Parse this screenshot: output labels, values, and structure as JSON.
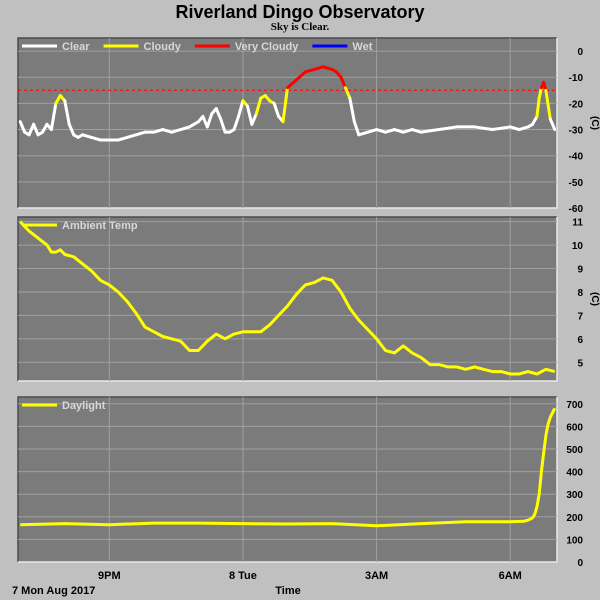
{
  "title": "Riverland Dingo Observatory",
  "subtitle": "Sky is Clear.",
  "colors": {
    "background": "#c0c0c0",
    "plot": "#7b7b7b",
    "grid": "#a0a0a0",
    "clear": "#ffffff",
    "cloudy": "#ffff00",
    "very_cloudy": "#ff0000",
    "wet": "#0000ff",
    "legend_text": "#d8d8d8"
  },
  "x_axis": {
    "label": "Time",
    "start_label": "7 Mon Aug 2017",
    "ticks": [
      {
        "t": 21,
        "label": "9PM"
      },
      {
        "t": 24,
        "label": "8 Tue"
      },
      {
        "t": 27,
        "label": "3AM"
      },
      {
        "t": 30,
        "label": "6AM"
      }
    ],
    "range": [
      18.95,
      31.05
    ]
  },
  "chart_data": [
    {
      "type": "line",
      "name": "sky",
      "ylabel": "(C)",
      "ylim": [
        -60,
        5
      ],
      "yticks": [
        0,
        -10,
        -20,
        -30,
        -40,
        -50,
        -60
      ],
      "grid": true,
      "legend": [
        {
          "label": "Clear",
          "color": "#ffffff"
        },
        {
          "label": "Cloudy",
          "color": "#ffff00"
        },
        {
          "label": "Very Cloudy",
          "color": "#ff0000"
        },
        {
          "label": "Wet",
          "color": "#0000ff"
        }
      ],
      "threshold": {
        "value": -15,
        "color": "#ff0000",
        "style": "dashed"
      },
      "x": [
        19.0,
        19.1,
        19.2,
        19.3,
        19.4,
        19.5,
        19.6,
        19.7,
        19.8,
        19.9,
        20.0,
        20.1,
        20.2,
        20.3,
        20.4,
        20.6,
        20.8,
        21.0,
        21.2,
        21.4,
        21.6,
        21.8,
        22.0,
        22.2,
        22.4,
        22.6,
        22.8,
        23.0,
        23.1,
        23.2,
        23.3,
        23.4,
        23.5,
        23.6,
        23.7,
        23.8,
        23.9,
        24.0,
        24.1,
        24.2,
        24.3,
        24.4,
        24.5,
        24.6,
        24.7,
        24.8,
        24.9,
        25.0,
        25.2,
        25.4,
        25.6,
        25.8,
        26.0,
        26.1,
        26.2,
        26.3,
        26.4,
        26.5,
        26.6,
        26.8,
        27.0,
        27.2,
        27.4,
        27.6,
        27.8,
        28.0,
        28.4,
        28.8,
        29.2,
        29.6,
        30.0,
        30.2,
        30.4,
        30.5,
        30.6,
        30.65,
        30.7,
        30.75,
        30.8,
        30.9,
        31.0
      ],
      "y": [
        -27,
        -31,
        -32,
        -28,
        -32,
        -31,
        -28,
        -30,
        -20,
        -17,
        -19,
        -28,
        -32,
        -33,
        -32,
        -33,
        -34,
        -34,
        -34,
        -33,
        -32,
        -31,
        -31,
        -30,
        -31,
        -30,
        -29,
        -27,
        -25,
        -29,
        -24,
        -22,
        -26,
        -31,
        -31,
        -30,
        -25,
        -19,
        -21,
        -28,
        -24,
        -18,
        -17,
        -19,
        -20,
        -25,
        -27,
        -14,
        -11,
        -8,
        -7,
        -6,
        -7,
        -8,
        -10,
        -14,
        -18,
        -27,
        -32,
        -31,
        -30,
        -31,
        -30,
        -31,
        -30,
        -31,
        -30,
        -29,
        -29,
        -30,
        -29,
        -30,
        -29,
        -28,
        -25,
        -18,
        -14,
        -12,
        -15,
        -26,
        -30
      ]
    },
    {
      "type": "line",
      "name": "ambient",
      "ylabel": "(C)",
      "ylim": [
        4.2,
        11.2
      ],
      "yticks": [
        5,
        6,
        7,
        8,
        9,
        10,
        11
      ],
      "grid": true,
      "legend": [
        {
          "label": "Ambient Temp",
          "color": "#ffff00"
        }
      ],
      "x": [
        19.0,
        19.2,
        19.4,
        19.6,
        19.7,
        19.8,
        19.9,
        20.0,
        20.2,
        20.4,
        20.6,
        20.8,
        21.0,
        21.2,
        21.4,
        21.6,
        21.8,
        22.0,
        22.2,
        22.4,
        22.6,
        22.8,
        23.0,
        23.2,
        23.4,
        23.6,
        23.8,
        24.0,
        24.2,
        24.4,
        24.6,
        24.8,
        25.0,
        25.2,
        25.4,
        25.6,
        25.8,
        26.0,
        26.2,
        26.4,
        26.6,
        26.8,
        27.0,
        27.2,
        27.4,
        27.6,
        27.8,
        28.0,
        28.2,
        28.4,
        28.6,
        28.8,
        29.0,
        29.2,
        29.4,
        29.6,
        29.8,
        30.0,
        30.2,
        30.4,
        30.6,
        30.8,
        31.0
      ],
      "y": [
        11.0,
        10.6,
        10.3,
        10.0,
        9.7,
        9.7,
        9.8,
        9.6,
        9.5,
        9.2,
        8.9,
        8.5,
        8.3,
        8.0,
        7.6,
        7.1,
        6.5,
        6.3,
        6.1,
        6.0,
        5.9,
        5.5,
        5.5,
        5.9,
        6.2,
        6.0,
        6.2,
        6.3,
        6.3,
        6.3,
        6.6,
        7.0,
        7.4,
        7.9,
        8.3,
        8.4,
        8.6,
        8.5,
        8.0,
        7.3,
        6.8,
        6.4,
        6.0,
        5.5,
        5.4,
        5.7,
        5.4,
        5.2,
        4.9,
        4.9,
        4.8,
        4.8,
        4.7,
        4.8,
        4.7,
        4.6,
        4.6,
        4.5,
        4.5,
        4.6,
        4.5,
        4.7,
        4.6
      ]
    },
    {
      "type": "line",
      "name": "daylight",
      "ylabel": "",
      "ylim": [
        0,
        730
      ],
      "yticks": [
        0,
        100,
        200,
        300,
        400,
        500,
        600,
        700
      ],
      "grid": true,
      "legend": [
        {
          "label": "Daylight",
          "color": "#ffff00"
        }
      ],
      "x": [
        19.0,
        20.0,
        21.0,
        22.0,
        23.0,
        24.0,
        25.0,
        26.0,
        27.0,
        28.0,
        29.0,
        30.0,
        30.3,
        30.4,
        30.5,
        30.55,
        30.6,
        30.65,
        30.7,
        30.75,
        30.8,
        30.85,
        30.9,
        30.95,
        31.0
      ],
      "y": [
        165,
        170,
        165,
        172,
        172,
        170,
        168,
        170,
        160,
        170,
        178,
        178,
        180,
        185,
        195,
        210,
        245,
        300,
        400,
        480,
        560,
        610,
        640,
        660,
        680
      ]
    }
  ]
}
